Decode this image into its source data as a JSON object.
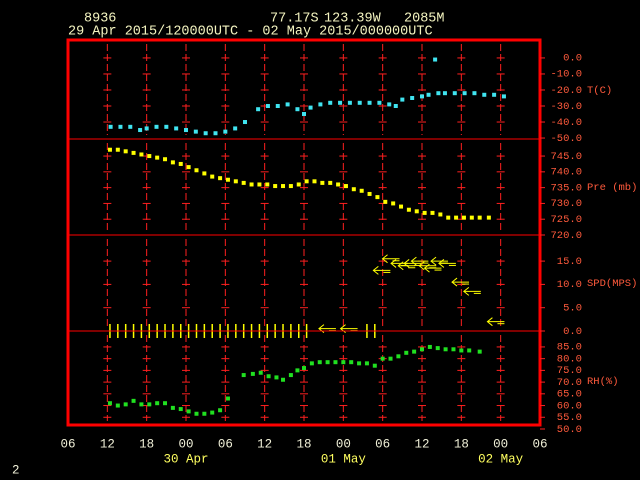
{
  "header": {
    "station": "8936",
    "latitude": "77.17S",
    "longitude": "123.39W",
    "elevation": "2085M",
    "period": "29 Apr 2015/120000UTC - 02 May 2015/000000UTC",
    "page": "2"
  },
  "x_axis": {
    "xlim": [
      0,
      72
    ],
    "xticks": [
      {
        "value": 0,
        "label": "06"
      },
      {
        "value": 6,
        "label": "12"
      },
      {
        "value": 12,
        "label": "18"
      },
      {
        "value": 18,
        "label": "00"
      },
      {
        "value": 24,
        "label": "06"
      },
      {
        "value": 30,
        "label": "12"
      },
      {
        "value": 36,
        "label": "18"
      },
      {
        "value": 42,
        "label": "00"
      },
      {
        "value": 48,
        "label": "06"
      },
      {
        "value": 54,
        "label": "12"
      },
      {
        "value": 60,
        "label": "18"
      },
      {
        "value": 66,
        "label": "00"
      },
      {
        "value": 72,
        "label": "06"
      }
    ],
    "dates": [
      {
        "value": 18,
        "label": "30 Apr"
      },
      {
        "value": 42,
        "label": "01 May"
      },
      {
        "value": 66,
        "label": "02 May"
      }
    ]
  },
  "chart_data": [
    {
      "type": "scatter",
      "ylabel": "T(C)",
      "color": "#40e4f0",
      "ylim": [
        -50.6,
        11.2
      ],
      "yticks": [
        {
          "value": 0,
          "label": "0.0"
        },
        {
          "value": -10,
          "label": "-10.0"
        },
        {
          "value": -20,
          "label": "-20.0"
        },
        {
          "value": -30,
          "label": "-30.0"
        },
        {
          "value": -40,
          "label": "-40.0"
        },
        {
          "value": -50,
          "label": "-50.0"
        }
      ],
      "x": [
        6.5,
        8,
        9.5,
        11,
        12,
        13.5,
        15,
        16.5,
        18,
        19.5,
        21,
        22.5,
        24,
        25.5,
        27,
        29,
        30.5,
        32,
        33.5,
        35,
        36,
        37,
        38.5,
        40,
        41.5,
        43,
        44.5,
        46,
        47.5,
        49,
        50,
        51,
        52.5,
        54,
        55,
        56,
        56.5,
        57.5,
        59,
        60.5,
        62,
        63.5,
        65,
        66.5
      ],
      "values": [
        -43,
        -43,
        -43,
        -45,
        -44,
        -43,
        -43,
        -44,
        -45,
        -46,
        -47,
        -47,
        -46,
        -44,
        -40,
        -32,
        -30,
        -30,
        -29,
        -32,
        -35,
        -31,
        -29,
        -28,
        -28,
        -28,
        -28,
        -28,
        -28,
        -29,
        -30,
        -26,
        -25,
        -24,
        -23,
        -1,
        -22,
        -22,
        -22,
        -22,
        -22,
        -23,
        -23,
        -24
      ]
    },
    {
      "type": "scatter",
      "ylabel": "Pre (mb)",
      "color": "#ffff00",
      "ylim": [
        720,
        750.4
      ],
      "yticks": [
        {
          "value": 745,
          "label": "745.0"
        },
        {
          "value": 740,
          "label": "740.0"
        },
        {
          "value": 735,
          "label": "735.0"
        },
        {
          "value": 730,
          "label": "730.0"
        },
        {
          "value": 725,
          "label": "725.0"
        },
        {
          "value": 720,
          "label": "720.0"
        }
      ],
      "x": [
        6.4,
        7.6,
        8.8,
        10,
        11.2,
        12.4,
        13.6,
        14.8,
        16,
        17.2,
        18.4,
        19.6,
        20.8,
        22,
        23.2,
        24.4,
        25.6,
        26.8,
        28,
        29.2,
        30.4,
        31.6,
        32.8,
        34,
        35.2,
        36.4,
        37.6,
        38.8,
        40,
        41.2,
        42.4,
        43.6,
        44.8,
        46,
        47.2,
        48.4,
        49.6,
        50.8,
        52,
        53.2,
        54.4,
        55.6,
        56.8,
        58,
        59.2,
        60.4,
        61.6,
        62.8,
        64.2
      ],
      "values": [
        747,
        747,
        746.5,
        746,
        745.5,
        745,
        744.5,
        744,
        743,
        742.5,
        741.5,
        740.5,
        739.5,
        738.5,
        738,
        737.5,
        737,
        736.5,
        736,
        736,
        736,
        735.5,
        735.5,
        735.5,
        736,
        737,
        737,
        736.5,
        736.5,
        736,
        735.5,
        734.5,
        734,
        733,
        732,
        730.5,
        730,
        729,
        728,
        727.5,
        727,
        727,
        726.5,
        725.5,
        725.5,
        725.5,
        725.5,
        725.5,
        725.5
      ]
    },
    {
      "type": "wind",
      "ylabel": "SPD(MPS)",
      "color": "#ffff00",
      "ylim": [
        0,
        20.6
      ],
      "yticks": [
        {
          "value": 15,
          "label": "15.0"
        },
        {
          "value": 10,
          "label": "10.0"
        },
        {
          "value": 5,
          "label": "5.0"
        },
        {
          "value": 0,
          "label": "0.0"
        }
      ],
      "x": [
        6.4,
        7.6,
        8.8,
        10,
        11.2,
        12.4,
        13.6,
        14.8,
        16,
        17.2,
        18.4,
        19.6,
        20.8,
        22,
        23.2,
        24.4,
        25.6,
        26.8,
        28,
        29.2,
        30.4,
        31.6,
        32.8,
        34,
        35.2,
        36.4,
        39.5,
        42.8,
        45.6,
        46.8,
        47.8,
        49.2,
        50.5,
        51.6,
        52.5,
        53.6,
        54.8,
        55.6,
        56.6,
        57.8,
        59.8,
        61.6,
        65.2
      ],
      "values": [
        0,
        0,
        0,
        0,
        0,
        0,
        0,
        0,
        0,
        0,
        0,
        0,
        0,
        0,
        0,
        0,
        0,
        0,
        0,
        0,
        0,
        0,
        0,
        0,
        0,
        0,
        0.5,
        0.5,
        0,
        0,
        13,
        15.5,
        14.5,
        14,
        14.5,
        15,
        14,
        13.5,
        15,
        14.5,
        10.5,
        8.5,
        2
      ]
    },
    {
      "type": "scatter",
      "ylabel": "RH(%)",
      "color": "#20e020",
      "ylim": [
        51.7,
        91.8
      ],
      "yticks": [
        {
          "value": 85,
          "label": "85.0"
        },
        {
          "value": 80,
          "label": "80.0"
        },
        {
          "value": 75,
          "label": "75.0"
        },
        {
          "value": 70,
          "label": "70.0"
        },
        {
          "value": 65,
          "label": "65.0"
        },
        {
          "value": 60,
          "label": "60.0"
        },
        {
          "value": 55,
          "label": "55.0"
        },
        {
          "value": 50,
          "label": "50.0"
        }
      ],
      "x": [
        6.4,
        7.6,
        8.8,
        10,
        11.2,
        12.4,
        13.6,
        14.8,
        16,
        17.2,
        18.4,
        19.6,
        20.8,
        22,
        23.2,
        24.4,
        26.8,
        28.2,
        29.4,
        30.6,
        31.8,
        32.8,
        34,
        35,
        36,
        37.2,
        38.4,
        39.6,
        40.8,
        42,
        43.2,
        44.4,
        45.6,
        46.8,
        48,
        49.2,
        50.4,
        51.6,
        52.8,
        54,
        55.2,
        56.4,
        57.6,
        58.8,
        60,
        61.2,
        62.8
      ],
      "values": [
        61,
        60,
        60.5,
        62,
        60.5,
        60.5,
        61,
        61,
        59,
        58.5,
        57.5,
        56.5,
        56.5,
        57,
        58,
        63,
        73,
        73.5,
        74,
        72.5,
        72,
        71,
        73,
        75,
        76,
        78,
        78.5,
        78.5,
        78.5,
        78.5,
        78.5,
        78,
        78,
        77,
        80,
        80,
        81,
        82.5,
        83,
        84,
        85,
        84.5,
        84,
        84,
        83.5,
        83.5,
        83
      ]
    }
  ]
}
